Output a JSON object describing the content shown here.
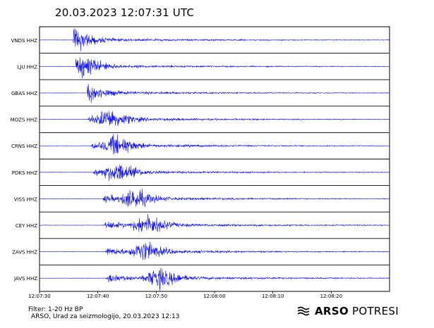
{
  "header": {
    "title": "20.03.2023  12:07:31 UTC"
  },
  "footer": {
    "filter": "Filter: 1-20 Hz BP",
    "credit": "ARSO, Urad za seizmologijo, 20.03.2023  12:13"
  },
  "logo": {
    "strong": "ARSO",
    "light": " POTRESI"
  },
  "chart_data": {
    "type": "line",
    "title": "20.03.2023  12:07:31 UTC",
    "xlabel": "",
    "ylabel": "",
    "xlim": [
      "12:07:30",
      "12:08:30"
    ],
    "x_ticks": [
      "12:07:30",
      "12:07:40",
      "12:07:50",
      "12:08:00",
      "12:08:10",
      "12:08:20"
    ],
    "line_color": "#0000ff",
    "series": [
      {
        "name": "VNDS HHZ",
        "onset": "12:07:35.8",
        "peak": "12:07:36.5"
      },
      {
        "name": "LJU HHZ",
        "onset": "12:07:36.2",
        "peak": "12:07:38.0"
      },
      {
        "name": "GBAS HHZ",
        "onset": "12:07:38.2",
        "peak": "12:07:38.4"
      },
      {
        "name": "MOZS HHZ",
        "onset": "12:07:38.3",
        "peak": "12:07:42.4"
      },
      {
        "name": "CRNS HHZ",
        "onset": "12:07:38.8",
        "peak": "12:07:43.5"
      },
      {
        "name": "PDKS HHZ",
        "onset": "12:07:39.2",
        "peak": "12:07:43.6"
      },
      {
        "name": "VISS HHZ",
        "onset": "12:07:40.8",
        "peak": "12:07:46.5"
      },
      {
        "name": "CEY HHZ",
        "onset": "12:07:41.0",
        "peak": "12:07:48.8"
      },
      {
        "name": "ZAVS HHZ",
        "onset": "12:07:41.2",
        "peak": "12:07:48.2"
      },
      {
        "name": "JAVS HHZ",
        "onset": "12:07:41.3",
        "peak": "12:07:51.0"
      }
    ]
  }
}
